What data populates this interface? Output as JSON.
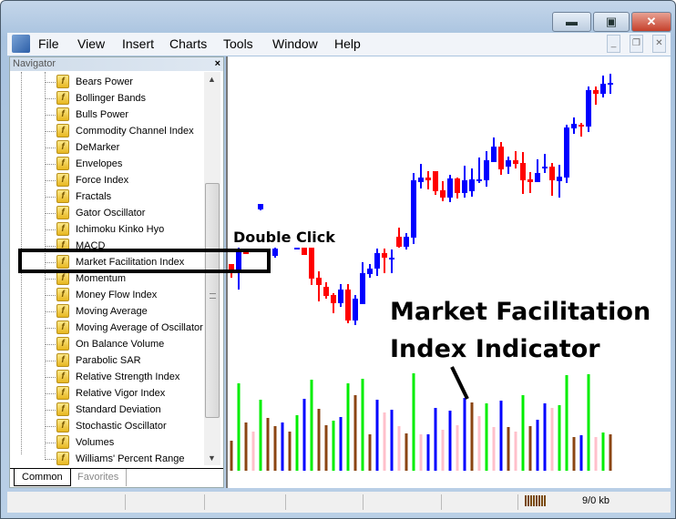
{
  "window": {
    "minimize": "minimize",
    "maximize": "maximize",
    "close": "✕"
  },
  "menu": [
    "File",
    "View",
    "Insert",
    "Charts",
    "Tools",
    "Window",
    "Help"
  ],
  "navigator": {
    "title": "Navigator",
    "items": [
      "Bears Power",
      "Bollinger Bands",
      "Bulls Power",
      "Commodity Channel Index",
      "DeMarker",
      "Envelopes",
      "Force Index",
      "Fractals",
      "Gator Oscillator",
      "Ichimoku Kinko Hyo",
      "MACD",
      "Market Facilitation Index",
      "Momentum",
      "Money Flow Index",
      "Moving Average",
      "Moving Average of Oscillator",
      "On Balance Volume",
      "Parabolic SAR",
      "Relative Strength Index",
      "Relative Vigor Index",
      "Standard Deviation",
      "Stochastic Oscillator",
      "Volumes",
      "Williams' Percent Range"
    ],
    "highlighted": "Market Facilitation Index",
    "tabs": [
      "Common",
      "Favorites"
    ],
    "active_tab": "Common"
  },
  "annotations": {
    "double_click": "Double Click",
    "indicator_line1": "Market Facilitation",
    "indicator_line2": "Index Indicator"
  },
  "status": {
    "traffic": "9/0 kb"
  },
  "colors": {
    "bull": "#0000ff",
    "bear": "#ff0000",
    "mfi_green": "#00ee00",
    "mfi_brown": "#8b4513",
    "mfi_blue": "#0000ff",
    "mfi_pink": "#ffc0cb"
  },
  "chart_data": {
    "type": "candlestick",
    "candles": [
      {
        "i": 0,
        "o": 310,
        "h": 310,
        "l": 295,
        "c": 303
      },
      {
        "i": 1,
        "o": 303,
        "h": 328,
        "l": 282,
        "c": 323
      },
      {
        "i": 2,
        "o": 323,
        "h": 323,
        "l": 321,
        "c": 321
      },
      {
        "i": 4,
        "o": 370,
        "h": 376,
        "l": 369,
        "c": 376
      },
      {
        "i": 6,
        "o": 319,
        "h": 328,
        "l": 317,
        "c": 327
      },
      {
        "i": 9,
        "o": 328,
        "h": 328,
        "l": 328,
        "c": 328
      },
      {
        "i": 10,
        "o": 328,
        "h": 328,
        "l": 320,
        "c": 320
      },
      {
        "i": 11,
        "o": 328,
        "h": 328,
        "l": 287,
        "c": 294
      },
      {
        "i": 12,
        "o": 295,
        "h": 302,
        "l": 269,
        "c": 287
      },
      {
        "i": 13,
        "o": 285,
        "h": 290,
        "l": 272,
        "c": 275
      },
      {
        "i": 14,
        "o": 276,
        "h": 278,
        "l": 256,
        "c": 267
      },
      {
        "i": 15,
        "o": 267,
        "h": 288,
        "l": 263,
        "c": 282
      },
      {
        "i": 16,
        "o": 282,
        "h": 288,
        "l": 245,
        "c": 248
      },
      {
        "i": 17,
        "o": 248,
        "h": 276,
        "l": 243,
        "c": 272
      },
      {
        "i": 18,
        "o": 266,
        "h": 312,
        "l": 266,
        "c": 300
      },
      {
        "i": 19,
        "o": 299,
        "h": 310,
        "l": 295,
        "c": 305
      },
      {
        "i": 20,
        "o": 305,
        "h": 327,
        "l": 297,
        "c": 322
      },
      {
        "i": 21,
        "o": 322,
        "h": 327,
        "l": 300,
        "c": 317
      },
      {
        "i": 22,
        "o": 317,
        "h": 326,
        "l": 300,
        "c": 317
      },
      {
        "i": 23,
        "o": 340,
        "h": 350,
        "l": 328,
        "c": 329
      },
      {
        "i": 24,
        "o": 329,
        "h": 344,
        "l": 326,
        "c": 340
      },
      {
        "i": 25,
        "o": 339,
        "h": 410,
        "l": 332,
        "c": 402
      },
      {
        "i": 26,
        "o": 400,
        "h": 420,
        "l": 393,
        "c": 405
      },
      {
        "i": 27,
        "o": 405,
        "h": 412,
        "l": 392,
        "c": 402
      },
      {
        "i": 28,
        "o": 412,
        "h": 412,
        "l": 386,
        "c": 390
      },
      {
        "i": 29,
        "o": 391,
        "h": 401,
        "l": 379,
        "c": 383
      },
      {
        "i": 30,
        "o": 383,
        "h": 408,
        "l": 378,
        "c": 404
      },
      {
        "i": 31,
        "o": 404,
        "h": 405,
        "l": 382,
        "c": 388
      },
      {
        "i": 32,
        "o": 388,
        "h": 418,
        "l": 383,
        "c": 402
      },
      {
        "i": 33,
        "o": 390,
        "h": 415,
        "l": 384,
        "c": 403
      },
      {
        "i": 34,
        "o": 403,
        "h": 427,
        "l": 399,
        "c": 403
      },
      {
        "i": 35,
        "o": 402,
        "h": 434,
        "l": 395,
        "c": 424
      },
      {
        "i": 36,
        "o": 422,
        "h": 449,
        "l": 422,
        "c": 439
      },
      {
        "i": 37,
        "o": 439,
        "h": 444,
        "l": 408,
        "c": 414
      },
      {
        "i": 38,
        "o": 417,
        "h": 428,
        "l": 409,
        "c": 424
      },
      {
        "i": 39,
        "o": 424,
        "h": 434,
        "l": 415,
        "c": 420
      },
      {
        "i": 40,
        "o": 421,
        "h": 433,
        "l": 387,
        "c": 402
      },
      {
        "i": 41,
        "o": 403,
        "h": 411,
        "l": 388,
        "c": 400
      },
      {
        "i": 42,
        "o": 400,
        "h": 425,
        "l": 400,
        "c": 410
      },
      {
        "i": 43,
        "o": 417,
        "h": 431,
        "l": 410,
        "c": 417
      },
      {
        "i": 44,
        "o": 417,
        "h": 421,
        "l": 385,
        "c": 402
      },
      {
        "i": 45,
        "o": 401,
        "h": 419,
        "l": 383,
        "c": 406
      },
      {
        "i": 46,
        "o": 405,
        "h": 463,
        "l": 399,
        "c": 460
      },
      {
        "i": 47,
        "o": 459,
        "h": 471,
        "l": 453,
        "c": 464
      },
      {
        "i": 48,
        "o": 463,
        "h": 465,
        "l": 450,
        "c": 461
      },
      {
        "i": 49,
        "o": 461,
        "h": 505,
        "l": 455,
        "c": 501
      },
      {
        "i": 50,
        "o": 501,
        "h": 505,
        "l": 485,
        "c": 497
      },
      {
        "i": 51,
        "o": 497,
        "h": 517,
        "l": 493,
        "c": 508
      },
      {
        "i": 52,
        "o": 509,
        "h": 519,
        "l": 497,
        "c": 509
      }
    ],
    "mfi": {
      "values": [
        33,
        96,
        53,
        43,
        78,
        58,
        49,
        53,
        43,
        61,
        79,
        100,
        68,
        50,
        55,
        59,
        96,
        83,
        101,
        40,
        78,
        64,
        67,
        49,
        41,
        107,
        40,
        40,
        69,
        45,
        66,
        50,
        80,
        75,
        60,
        74,
        48,
        77,
        48,
        43,
        83,
        49,
        56,
        74,
        69,
        72,
        105,
        37,
        39,
        106,
        37,
        42,
        40
      ],
      "colors": [
        "brown",
        "green",
        "brown",
        "pink",
        "green",
        "brown",
        "brown",
        "blue",
        "brown",
        "green",
        "blue",
        "green",
        "brown",
        "brown",
        "green",
        "blue",
        "green",
        "brown",
        "green",
        "brown",
        "blue",
        "pink",
        "blue",
        "pink",
        "brown",
        "green",
        "pink",
        "blue",
        "blue",
        "pink",
        "blue",
        "pink",
        "blue",
        "brown",
        "pink",
        "green",
        "pink",
        "blue",
        "brown",
        "pink",
        "green",
        "brown",
        "blue",
        "blue",
        "pink",
        "green",
        "green",
        "brown",
        "blue",
        "green",
        "pink",
        "green",
        "brown"
      ]
    }
  }
}
